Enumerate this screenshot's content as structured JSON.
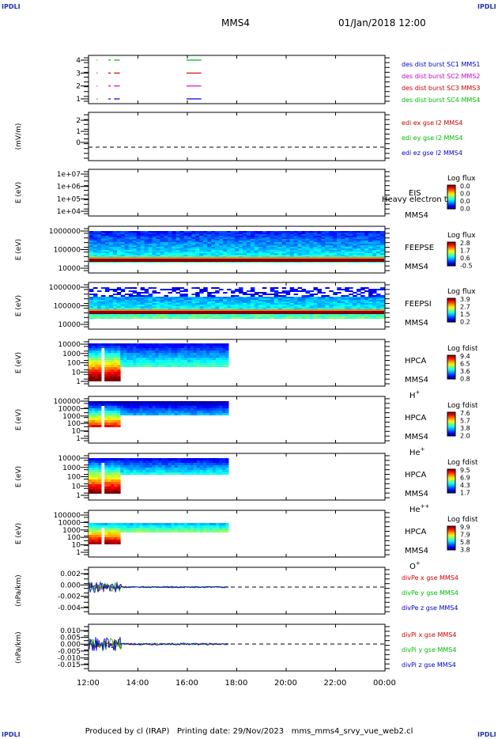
{
  "corner_label": "IPDLI",
  "header": {
    "title": "MMS4",
    "date": "01/Jan/2018 12:00"
  },
  "footer": {
    "credit": "Produced by cl (IRAP)",
    "printing": "Printing date: 29/Nov/2023",
    "file": "mms_mms4_srvy_vue_web2.cl"
  },
  "x_ticks": [
    "12:00",
    "14:00",
    "16:00",
    "18:00",
    "20:00",
    "22:00",
    "00:00"
  ],
  "colors": {
    "mms1": "#0000cc",
    "mms2": "#cc00cc",
    "mms3": "#cc0000",
    "mms4": "#00bb00",
    "x": "#cc0000",
    "y": "#00bb00",
    "z": "#0000cc"
  },
  "chart_data": [
    {
      "type": "line",
      "name": "burst-availability",
      "ylim": [
        0.5,
        4.5
      ],
      "yticks": [
        "4",
        "3",
        "2",
        "1"
      ],
      "legend": [
        "des dist burst SC1 MMS1",
        "des dist burst SC2 MMS2",
        "des dist burst SC3 MMS3",
        "des dist burst SC4 MMS4"
      ],
      "series": [
        {
          "y": 4,
          "segments": [
            [
              "12:20",
              "12:22"
            ],
            [
              "12:48",
              "12:54"
            ],
            [
              "13:02",
              "13:16"
            ],
            [
              "15:58",
              "16:34"
            ]
          ]
        },
        {
          "y": 3,
          "segments": [
            [
              "12:20",
              "12:22"
            ],
            [
              "12:48",
              "12:54"
            ],
            [
              "13:02",
              "13:16"
            ],
            [
              "15:58",
              "16:34"
            ]
          ]
        },
        {
          "y": 2,
          "segments": [
            [
              "12:20",
              "12:22"
            ],
            [
              "12:48",
              "12:54"
            ],
            [
              "13:02",
              "13:16"
            ],
            [
              "15:58",
              "16:34"
            ]
          ]
        },
        {
          "y": 1,
          "segments": [
            [
              "12:20",
              "12:22"
            ],
            [
              "12:48",
              "12:54"
            ],
            [
              "13:02",
              "13:16"
            ],
            [
              "15:58",
              "16:34"
            ]
          ]
        }
      ]
    },
    {
      "type": "line",
      "name": "edi-e-field",
      "ylabel": "(mV/m)",
      "ylim": [
        -1,
        2.4
      ],
      "yticks": [
        "2",
        "1",
        "0"
      ],
      "legend": [
        "edi ex gse l2 MMS4",
        "edi ey gse l2 MMS4",
        "edi ez gse l2 MMS4"
      ]
    },
    {
      "type": "heatmap",
      "name": "EIS",
      "ylabel": "E (eV)",
      "yticks": [
        "1e+07",
        "1e+06",
        "1e+05",
        "1e+04"
      ],
      "instrument": "EIS",
      "species_extra": "Heavy electron to",
      "spacecraft": "MMS4",
      "scale_title": "Log flux",
      "scale_ticks": [
        "0.0",
        "0.0",
        "0.0",
        "0.0"
      ]
    },
    {
      "type": "heatmap",
      "name": "FEEPSE",
      "ylabel": "E (eV)",
      "yticks": [
        "1000000",
        "100000",
        "10000"
      ],
      "instrument": "FEEPSE",
      "spacecraft": "MMS4",
      "scale_title": "Log flux",
      "scale_ticks": [
        "2.8",
        "1.7",
        "0.6",
        "-0.5"
      ],
      "x_range": [
        "12:00",
        "00:00"
      ]
    },
    {
      "type": "heatmap",
      "name": "FEEPSI",
      "ylabel": "E (eV)",
      "yticks": [
        "1000000",
        "100000",
        "10000"
      ],
      "instrument": "FEEPSI",
      "spacecraft": "MMS4",
      "scale_title": "Log flux",
      "scale_ticks": [
        "3.9",
        "2.7",
        "1.5",
        "0.2"
      ],
      "x_range": [
        "12:00",
        "00:00"
      ]
    },
    {
      "type": "heatmap",
      "name": "HPCA-H",
      "ylabel": "E (eV)",
      "yticks": [
        "10000",
        "1000",
        "100",
        "10",
        "1"
      ],
      "instrument": "HPCA",
      "spacecraft": "MMS4",
      "species": "H",
      "charge": "+",
      "scale_title": "Log fdist",
      "scale_ticks": [
        "9.4",
        "6.5",
        "3.6",
        "0.8"
      ],
      "x_range": [
        "12:00",
        "17:40"
      ]
    },
    {
      "type": "heatmap",
      "name": "HPCA-He+",
      "ylabel": "E (eV)",
      "yticks": [
        "100000",
        "10000",
        "1000",
        "100",
        "10",
        "1"
      ],
      "instrument": "HPCA",
      "spacecraft": "MMS4",
      "species": "He",
      "charge": "+",
      "scale_title": "Log fdist",
      "scale_ticks": [
        "7.6",
        "5.7",
        "3.8",
        "2.0"
      ],
      "x_range": [
        "12:00",
        "17:40"
      ]
    },
    {
      "type": "heatmap",
      "name": "HPCA-He++",
      "ylabel": "E (eV)",
      "yticks": [
        "10000",
        "1000",
        "100",
        "10",
        "1"
      ],
      "instrument": "HPCA",
      "spacecraft": "MMS4",
      "species": "He",
      "charge": "++",
      "scale_title": "Log fdist",
      "scale_ticks": [
        "9.5",
        "6.9",
        "4.3",
        "1.7"
      ],
      "x_range": [
        "12:00",
        "17:40"
      ]
    },
    {
      "type": "heatmap",
      "name": "HPCA-O+",
      "ylabel": "E (eV)",
      "yticks": [
        "100000",
        "10000",
        "1000",
        "100",
        "10",
        "1"
      ],
      "instrument": "HPCA",
      "spacecraft": "MMS4",
      "species": "O",
      "charge": "+",
      "scale_title": "Log fdist",
      "scale_ticks": [
        "9.9",
        "7.9",
        "5.8",
        "3.8"
      ],
      "x_range": [
        "12:00",
        "17:40"
      ]
    },
    {
      "type": "line",
      "name": "divPe",
      "ylabel": "(nPa/km)",
      "ylim": [
        -0.004,
        0.003
      ],
      "yticks": [
        "0.002",
        "0.000",
        "-0.002",
        "-0.004"
      ],
      "legend": [
        "divPe x gse MMS4",
        "divPe y gse MMS4",
        "divPe z gse MMS4"
      ]
    },
    {
      "type": "line",
      "name": "divPi",
      "ylabel": "(nPa/km)",
      "ylim": [
        -0.016,
        0.012
      ],
      "yticks": [
        "0.010",
        "0.005",
        "0.000",
        "-0.005",
        "-0.010",
        "-0.015"
      ],
      "legend": [
        "divPi x gse MMS4",
        "divPi y gse MMS4",
        "divPi z gse MMS4"
      ]
    }
  ]
}
